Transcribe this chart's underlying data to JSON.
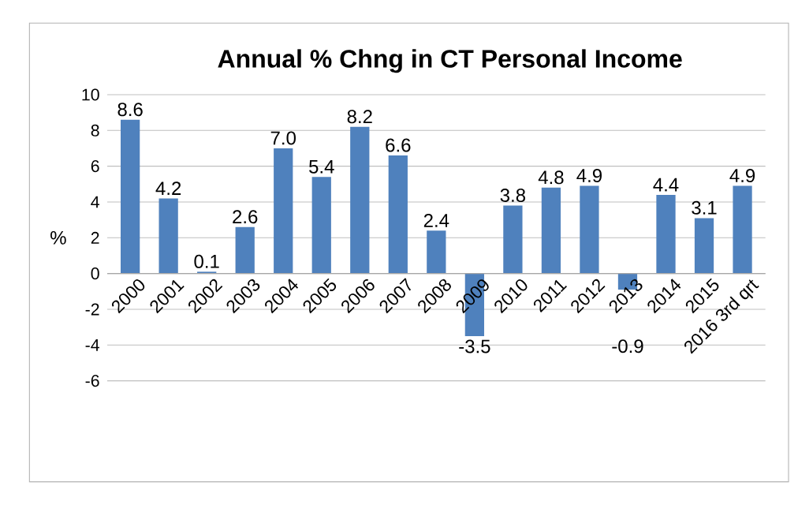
{
  "chart_data": {
    "type": "bar",
    "title": "Annual % Chng in CT Personal Income",
    "ylabel": "%",
    "categories": [
      "2000",
      "2001",
      "2002",
      "2003",
      "2004",
      "2005",
      "2006",
      "2007",
      "2008",
      "2009",
      "2010",
      "2011",
      "2012",
      "2013",
      "2014",
      "2015",
      "2016 3rd qrt"
    ],
    "values": [
      8.6,
      4.2,
      0.1,
      2.6,
      7.0,
      5.4,
      8.2,
      6.6,
      2.4,
      -3.5,
      3.8,
      4.8,
      4.9,
      -0.9,
      4.4,
      3.1,
      4.9
    ],
    "value_labels": [
      "8.6",
      "4.2",
      "0.1",
      "2.6",
      "7.0",
      "5.4",
      "8.2",
      "6.6",
      "2.4",
      "-3.5",
      "3.8",
      "4.8",
      "4.9",
      "-0.9",
      "4.4",
      "3.1",
      "4.9"
    ],
    "color": "#4f81bd",
    "ylim": [
      -6,
      10
    ],
    "yticks": [
      -6,
      -4,
      -2,
      0,
      2,
      4,
      6,
      8,
      10
    ],
    "grid": "y"
  }
}
